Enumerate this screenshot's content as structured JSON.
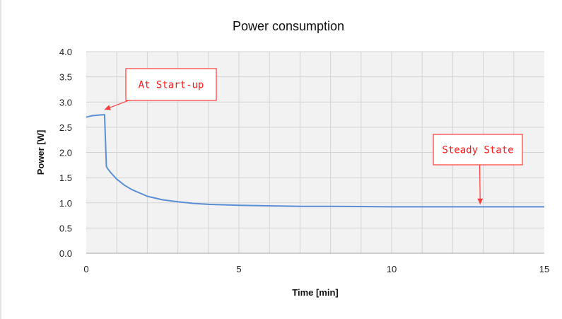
{
  "chart_data": {
    "type": "line",
    "title": "Power consumption",
    "xlabel": "Time [min]",
    "ylabel": "Power [W]",
    "xlim": [
      0,
      15
    ],
    "ylim": [
      0,
      4.0
    ],
    "x_ticks": [
      "0",
      "5",
      "10",
      "15"
    ],
    "y_ticks": [
      "0.0",
      "0.5",
      "1.0",
      "1.5",
      "2.0",
      "2.5",
      "3.0",
      "3.5",
      "4.0"
    ],
    "grid": true,
    "series": [
      {
        "color": "#5b8fd4",
        "x": [
          0,
          0.2,
          0.4,
          0.6,
          0.62,
          0.66,
          0.7,
          0.8,
          1.0,
          1.25,
          1.5,
          2.0,
          2.5,
          3.0,
          3.5,
          4.0,
          5.0,
          6.0,
          7.0,
          8.0,
          10.0,
          12.0,
          15.0
        ],
        "y": [
          2.7,
          2.73,
          2.74,
          2.75,
          2.4,
          1.72,
          1.68,
          1.6,
          1.47,
          1.35,
          1.26,
          1.13,
          1.06,
          1.02,
          0.99,
          0.97,
          0.95,
          0.94,
          0.93,
          0.93,
          0.92,
          0.92,
          0.92
        ]
      }
    ],
    "annotations": [
      {
        "text": "At Start-up",
        "points_to": {
          "x": 0.6,
          "y": 2.85
        }
      },
      {
        "text": "Steady State",
        "points_to": {
          "x": 12.9,
          "y": 0.97
        }
      }
    ]
  }
}
